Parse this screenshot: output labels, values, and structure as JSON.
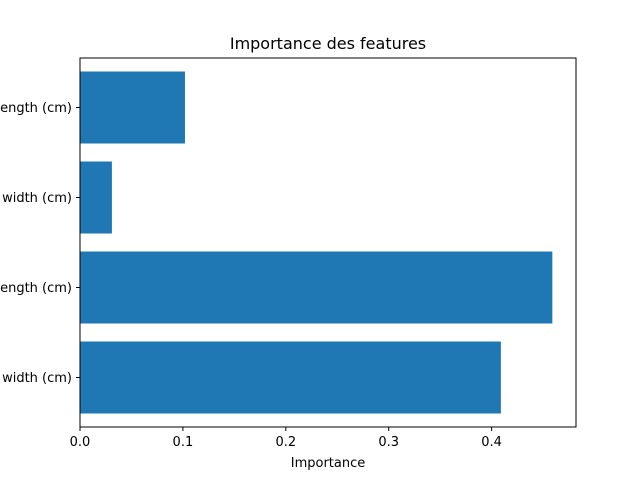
{
  "chart_data": {
    "type": "bar",
    "orientation": "horizontal",
    "title": "Importance des features",
    "xlabel": "Importance",
    "ylabel": "",
    "categories_visible_labels": [
      "ength (cm)",
      "width (cm)",
      "ength (cm)",
      "width (cm)"
    ],
    "values": [
      0.102,
      0.031,
      0.459,
      0.409
    ],
    "xlim": [
      0,
      0.482
    ],
    "xticks": [
      0.0,
      0.1,
      0.2,
      0.3,
      0.4
    ],
    "xtick_labels": [
      "0.0",
      "0.1",
      "0.2",
      "0.3",
      "0.4"
    ],
    "bar_color": "#1f77b4",
    "grid": false,
    "legend": "none"
  }
}
